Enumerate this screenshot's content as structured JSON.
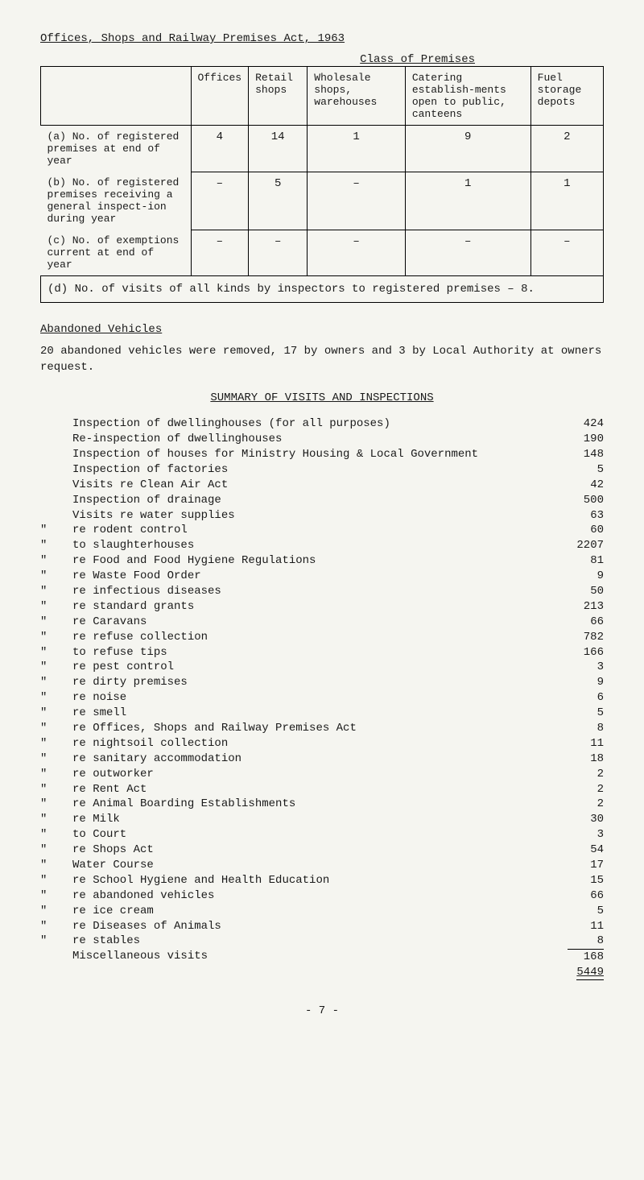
{
  "title": "Offices, Shops and Railway Premises Act, 1963",
  "table_subtitle": "Class of Premises",
  "table": {
    "headers": [
      "",
      "Offices",
      "Retail shops",
      "Wholesale shops, warehouses",
      "Catering establish-ments open to public, canteens",
      "Fuel storage depots"
    ],
    "rows": [
      {
        "label": "(a) No. of registered premises at end of year",
        "cells": [
          "4",
          "14",
          "1",
          "9",
          "2"
        ]
      },
      {
        "label": "(b) No. of registered premises receiving a general inspect-ion during year",
        "cells": [
          "–",
          "5",
          "–",
          "1",
          "1"
        ]
      },
      {
        "label": "(c) No. of exemptions current at end of year",
        "cells": [
          "–",
          "–",
          "–",
          "–",
          "–"
        ]
      }
    ],
    "footer": "(d) No. of visits of all kinds by inspectors to registered premises – 8."
  },
  "abandoned_heading": "Abandoned Vehicles",
  "abandoned_text": "20 abandoned vehicles were removed, 17 by owners and 3 by Local Authority at owners request.",
  "summary_heading": "SUMMARY OF VISITS AND INSPECTIONS",
  "summary": [
    {
      "prefix": "",
      "text": "Inspection of dwellinghouses (for all purposes)",
      "value": "424"
    },
    {
      "prefix": "",
      "text": "Re-inspection of dwellinghouses",
      "value": "190"
    },
    {
      "prefix": "",
      "text": "Inspection of houses for Ministry Housing & Local Government",
      "value": "148"
    },
    {
      "prefix": "",
      "text": "Inspection of factories",
      "value": "5"
    },
    {
      "prefix": "",
      "text": "Visits re Clean Air Act",
      "value": "42"
    },
    {
      "prefix": "",
      "text": "Inspection of drainage",
      "value": "500"
    },
    {
      "prefix": "",
      "text": "Visits re water supplies",
      "value": "63"
    },
    {
      "prefix": "\"",
      "text": "re rodent control",
      "value": "60"
    },
    {
      "prefix": "\"",
      "text": "to slaughterhouses",
      "value": "2207"
    },
    {
      "prefix": "\"",
      "text": "re Food and Food Hygiene Regulations",
      "value": "81"
    },
    {
      "prefix": "\"",
      "text": "re Waste Food Order",
      "value": "9"
    },
    {
      "prefix": "\"",
      "text": "re infectious diseases",
      "value": "50"
    },
    {
      "prefix": "\"",
      "text": "re standard grants",
      "value": "213"
    },
    {
      "prefix": "\"",
      "text": "re Caravans",
      "value": "66"
    },
    {
      "prefix": "\"",
      "text": "re refuse collection",
      "value": "782"
    },
    {
      "prefix": "\"",
      "text": "to refuse tips",
      "value": "166"
    },
    {
      "prefix": "\"",
      "text": "re pest control",
      "value": "3"
    },
    {
      "prefix": "\"",
      "text": "re dirty premises",
      "value": "9"
    },
    {
      "prefix": "\"",
      "text": "re noise",
      "value": "6"
    },
    {
      "prefix": "\"",
      "text": "re smell",
      "value": "5"
    },
    {
      "prefix": "\"",
      "text": "re Offices, Shops and Railway Premises Act",
      "value": "8"
    },
    {
      "prefix": "\"",
      "text": "re nightsoil collection",
      "value": "11"
    },
    {
      "prefix": "\"",
      "text": "re sanitary accommodation",
      "value": "18"
    },
    {
      "prefix": "\"",
      "text": "re outworker",
      "value": "2"
    },
    {
      "prefix": "\"",
      "text": "re Rent Act",
      "value": "2"
    },
    {
      "prefix": "\"",
      "text": "re Animal Boarding Establishments",
      "value": "2"
    },
    {
      "prefix": "\"",
      "text": "re Milk",
      "value": "30"
    },
    {
      "prefix": "\"",
      "text": "to Court",
      "value": "3"
    },
    {
      "prefix": "\"",
      "text": "re Shops Act",
      "value": "54"
    },
    {
      "prefix": "\"",
      "text": "Water Course",
      "value": "17"
    },
    {
      "prefix": "\"",
      "text": "re School Hygiene and Health Education",
      "value": "15"
    },
    {
      "prefix": "\"",
      "text": "re abandoned vehicles",
      "value": "66"
    },
    {
      "prefix": "\"",
      "text": "re ice cream",
      "value": "5"
    },
    {
      "prefix": "\"",
      "text": "re Diseases of Animals",
      "value": "11"
    },
    {
      "prefix": "\"",
      "text": "re stables",
      "value": "8"
    },
    {
      "prefix": "",
      "text": "Miscellaneous visits",
      "value": "168"
    }
  ],
  "total": "5449",
  "page_number": "- 7 -"
}
